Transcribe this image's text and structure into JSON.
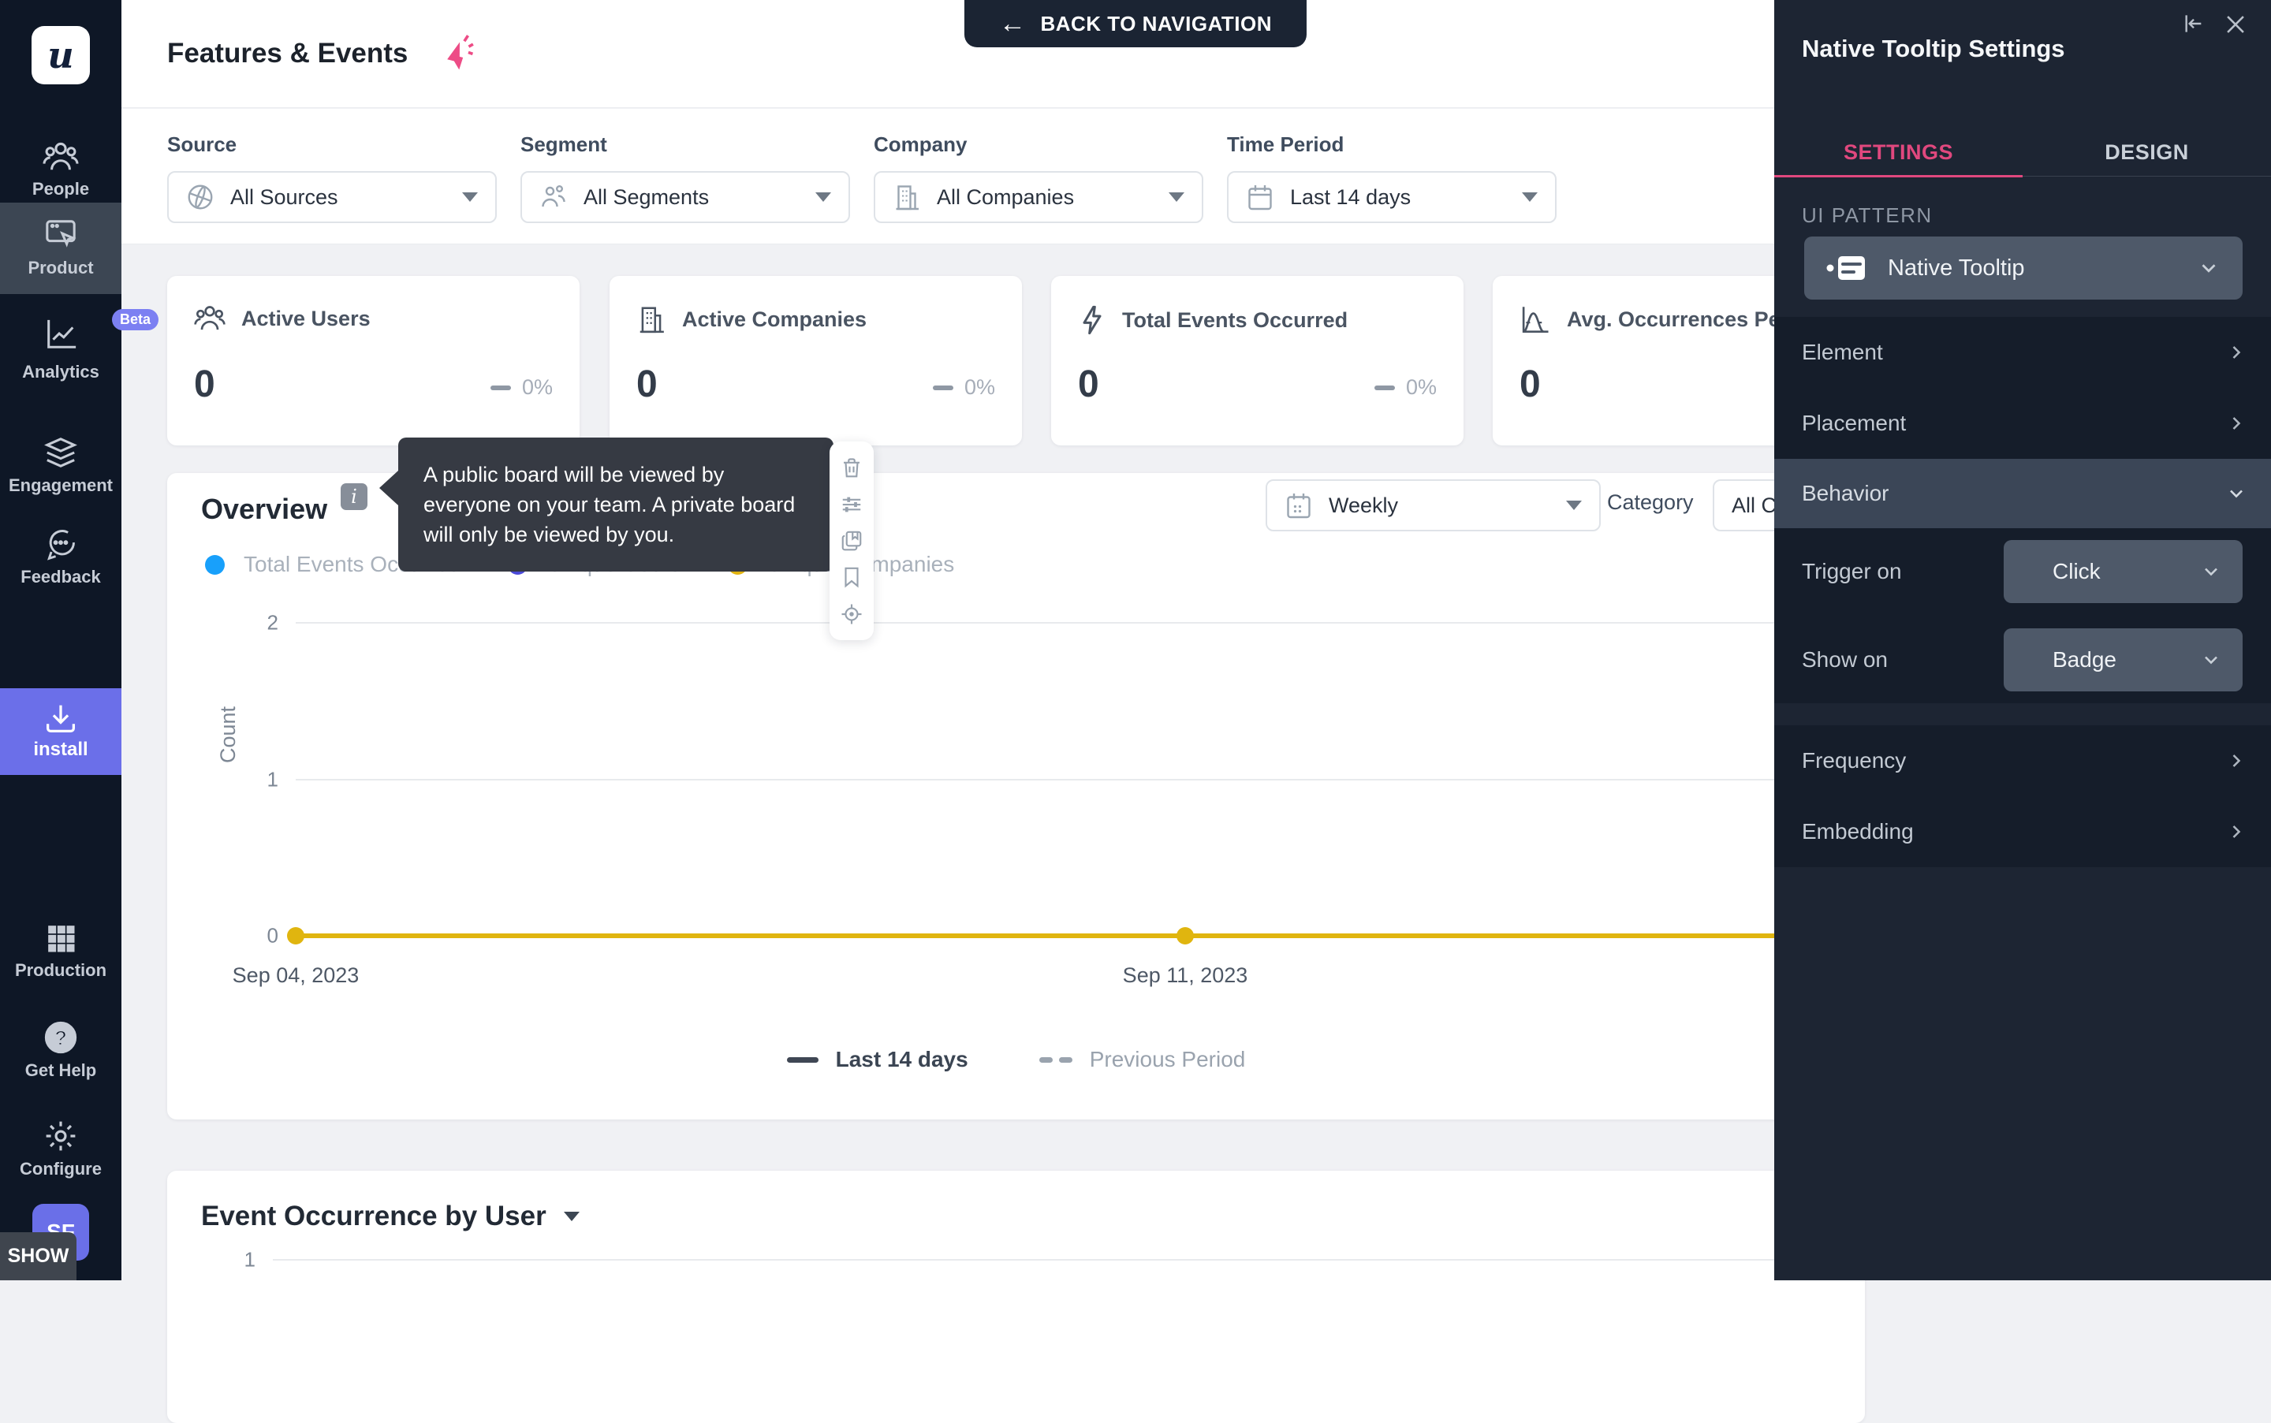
{
  "colors": {
    "sidebar_bg": "#0e1726",
    "sidebar_active": "#3c4653",
    "accent_purple": "#6b6fe9",
    "accent_pink": "#e0487e",
    "panel_bg": "#1d2533",
    "panel_group_bg": "#151d2a",
    "panel_row_highlight": "#3b4657",
    "panel_control_bg": "#4e5969",
    "dark_button": "#1b2433",
    "tooltip_bg": "#363a43",
    "page_bg": "#f0f1f4"
  },
  "sidebar": {
    "logo": "u",
    "items": [
      {
        "label": "People",
        "icon": "people-icon"
      },
      {
        "label": "Product",
        "icon": "product-icon",
        "active": true
      },
      {
        "label": "Analytics",
        "icon": "analytics-icon",
        "badge": "Beta"
      },
      {
        "label": "Engagement",
        "icon": "engagement-icon"
      },
      {
        "label": "Feedback",
        "icon": "feedback-icon"
      }
    ],
    "install_label": "install",
    "bottom_items": [
      {
        "label": "Production",
        "icon": "grid-icon"
      },
      {
        "label": "Get Help",
        "icon": "help-icon"
      },
      {
        "label": "Configure",
        "icon": "gear-icon"
      }
    ],
    "avatar_initials": "SF",
    "show_tooltip": "SHOW"
  },
  "header": {
    "title": "Features & Events",
    "back_button": "BACK TO NAVIGATION"
  },
  "filters": [
    {
      "label": "Source",
      "value": "All Sources",
      "icon": "globe-icon"
    },
    {
      "label": "Segment",
      "value": "All Segments",
      "icon": "segment-icon"
    },
    {
      "label": "Company",
      "value": "All Companies",
      "icon": "building-icon"
    },
    {
      "label": "Time Period",
      "value": "Last 14 days",
      "icon": "calendar-icon"
    }
  ],
  "stat_cards": [
    {
      "title": "Active Users",
      "value": "0",
      "change": "0%",
      "icon": "users-icon"
    },
    {
      "title": "Active Companies",
      "value": "0",
      "change": "0%",
      "icon": "building-icon"
    },
    {
      "title": "Total Events Occurred",
      "value": "0",
      "change": "0%",
      "icon": "lightning-icon"
    },
    {
      "title": "Avg. Occurrences Per User",
      "value": "0",
      "change": "",
      "icon": "bell-curve-icon"
    }
  ],
  "overview": {
    "title": "Overview",
    "info_badge": "i",
    "tooltip_text": "A public board will be viewed by everyone on your team. A private board will only be viewed by you.",
    "granularity": "Weekly",
    "category_label": "Category",
    "category_value": "All Categories"
  },
  "chart_data": [
    {
      "type": "line",
      "title": "Overview",
      "x": [
        "Sep 04, 2023",
        "Sep 11, 2023"
      ],
      "series": [
        {
          "name": "Total Events Occurred",
          "color": "#18a0fb",
          "values": [
            0,
            0
          ]
        },
        {
          "name": "Unique Users",
          "color": "#4b4ad8",
          "values": [
            0,
            0
          ]
        },
        {
          "name": "Unique Companies",
          "color": "#e2b411",
          "values": [
            0,
            0
          ]
        }
      ],
      "visible_series_color": "#e0b50f",
      "ylabel": "Count",
      "ylim": [
        0,
        2
      ],
      "yticks": [
        0,
        1,
        2
      ],
      "grid": true,
      "legend_position": "top",
      "legend_footer": [
        "Last 14 days",
        "Previous Period"
      ]
    },
    {
      "type": "line",
      "title": "Event Occurrence by User",
      "x": [],
      "series": [],
      "yticks": [
        1
      ],
      "grid": true
    }
  ],
  "event_section": {
    "title": "Event Occurrence by User"
  },
  "panel": {
    "title": "Native Tooltip Settings",
    "tabs": [
      {
        "label": "SETTINGS"
      },
      {
        "label": "DESIGN"
      }
    ],
    "active_tab": "SETTINGS",
    "ui_pattern_label": "UI PATTERN",
    "ui_pattern_value": "Native Tooltip",
    "nav_rows": [
      {
        "label": "Element"
      },
      {
        "label": "Placement"
      }
    ],
    "behavior": {
      "label": "Behavior",
      "fields": [
        {
          "label": "Trigger on",
          "value": "Click"
        },
        {
          "label": "Show on",
          "value": "Badge"
        }
      ]
    },
    "more_rows": [
      {
        "label": "Frequency"
      },
      {
        "label": "Embedding"
      }
    ]
  }
}
